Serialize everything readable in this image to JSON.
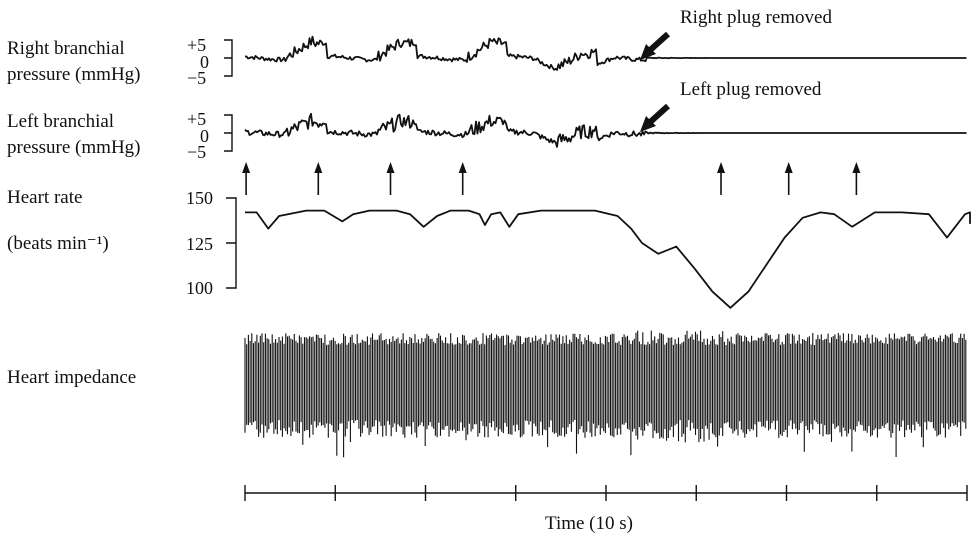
{
  "chart_data": [
    {
      "type": "line",
      "title": "",
      "ylabel": [
        "Right branchial",
        "pressure (mmHg)"
      ],
      "yticks": [
        "+5",
        "0",
        "−5"
      ],
      "ylim": [
        -5,
        5
      ],
      "annotation": "Right plug removed",
      "series": [
        {
          "name": "Right branchial pressure",
          "x": [
            0,
            1,
            2,
            3,
            4,
            5,
            6,
            7,
            8
          ],
          "values": [
            0,
            4,
            0,
            4,
            0,
            4,
            0,
            -1,
            0
          ]
        }
      ]
    },
    {
      "type": "line",
      "title": "",
      "ylabel": [
        "Left branchial",
        "pressure (mmHg)"
      ],
      "yticks": [
        "+5",
        "0",
        "−5"
      ],
      "ylim": [
        -5,
        5
      ],
      "annotation": "Left plug removed",
      "series": [
        {
          "name": "Left branchial pressure",
          "x": [
            0,
            1,
            2,
            3,
            4,
            5,
            6,
            7,
            8
          ],
          "values": [
            0,
            3,
            0,
            3,
            0,
            3,
            0,
            -2,
            0
          ]
        }
      ]
    },
    {
      "type": "line",
      "title": "",
      "ylabel": [
        "Heart rate",
        "(beats min⁻¹)"
      ],
      "yticks": [
        "150",
        "125",
        "100"
      ],
      "ylim": [
        88,
        150
      ],
      "series": [
        {
          "name": "Heart rate",
          "x": [
            0.0,
            0.35,
            0.48,
            0.6,
            0.9,
            1.1,
            1.3,
            1.42,
            1.6,
            1.9,
            2.05,
            2.2,
            2.35,
            2.5,
            2.7,
            2.82,
            2.88,
            2.95,
            3.05,
            3.15,
            3.25,
            3.5,
            3.8,
            4.1,
            4.35,
            4.5,
            4.62,
            4.8,
            5.0,
            5.2,
            5.4,
            5.6,
            5.8,
            6.0,
            6.2,
            6.4,
            6.6,
            6.75,
            6.95,
            7.2,
            7.5,
            7.8,
            8.0,
            8.2,
            8.4,
            8.6,
            8.8,
            9.0
          ],
          "values": [
            142,
            142,
            133,
            140,
            143,
            143,
            137,
            141,
            143,
            143,
            141,
            134,
            140,
            143,
            143,
            141,
            135,
            141,
            142,
            134,
            141,
            143,
            143,
            143,
            140,
            133,
            125,
            119,
            123,
            111,
            98,
            89,
            98,
            113,
            128,
            139,
            142,
            141,
            134,
            142,
            142,
            141,
            128,
            141,
            142,
            141,
            136,
            141
          ]
        }
      ]
    },
    {
      "type": "line",
      "title": "",
      "ylabel": "Heart impedance",
      "series": [
        {
          "name": "Heart impedance",
          "values": []
        }
      ]
    }
  ],
  "time_axis": {
    "label": "Time (10 s)",
    "ticks": 9
  },
  "arrows": {
    "top_row_x": [
      0.4,
      1.2,
      2.0,
      2.8
    ],
    "bottom_row_x": [
      6.05,
      6.8,
      7.55
    ]
  }
}
